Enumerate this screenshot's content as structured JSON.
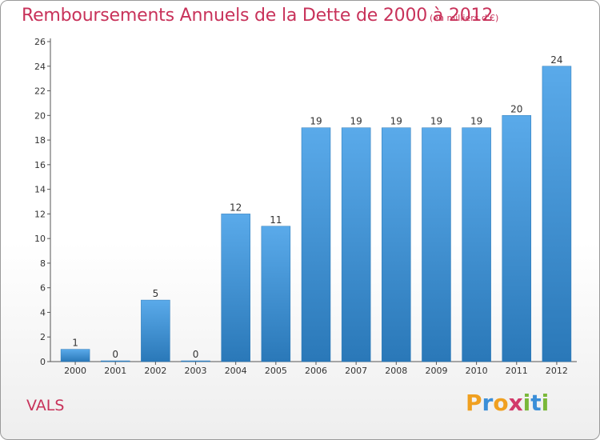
{
  "title": "Remboursements Annuels de la Dette de 2000 à 2012",
  "unit": "(en milliers d'€)",
  "commune": "VALS",
  "logo": {
    "letters": [
      "P",
      "r",
      "o",
      "x",
      "i",
      "t",
      "i"
    ],
    "colors": [
      "#f0a020",
      "#3a8ed8",
      "#f0a020",
      "#d23a6a",
      "#7ab83a",
      "#3a8ed8",
      "#7ab83a"
    ]
  },
  "colors": {
    "bar": "#4a9ee0",
    "title": "#c8325a"
  },
  "chart_data": {
    "type": "bar",
    "title": "Remboursements Annuels de la Dette de 2000 à 2012",
    "categories": [
      "2000",
      "2001",
      "2002",
      "2003",
      "2004",
      "2005",
      "2006",
      "2007",
      "2008",
      "2009",
      "2010",
      "2011",
      "2012"
    ],
    "values": [
      1,
      0,
      5,
      0,
      12,
      11,
      19,
      19,
      19,
      19,
      19,
      20,
      24
    ],
    "ylim": [
      0,
      26
    ],
    "yticks": [
      0,
      2,
      4,
      6,
      8,
      10,
      12,
      14,
      16,
      18,
      20,
      22,
      24,
      26
    ],
    "grid": false,
    "xlabel": "",
    "ylabel": ""
  }
}
